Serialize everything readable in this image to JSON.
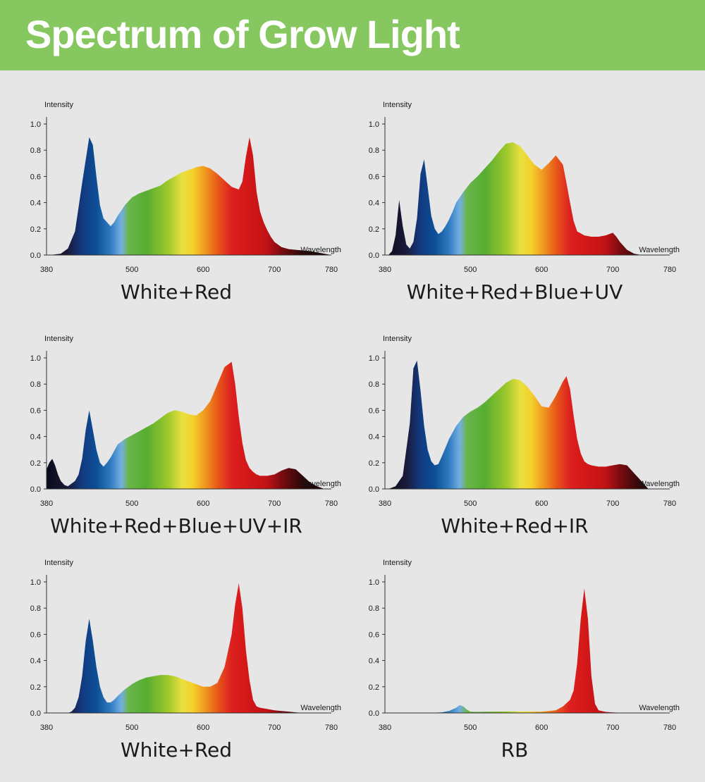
{
  "page": {
    "title": "Spectrum of Grow Light"
  },
  "colors": {
    "banner": "#86c760",
    "background": "#e6e6e6",
    "text": "#1a1a1a"
  },
  "chart_data": [
    {
      "type": "area",
      "caption": "White+Red",
      "ylabel": "Intensity",
      "xlabel": "Wavelength",
      "ylim": [
        0,
        1.0
      ],
      "xlim": [
        380,
        780
      ],
      "x_ticks": [
        380,
        500,
        600,
        700,
        780
      ],
      "y_ticks": [
        "0.0",
        "0.2",
        "0.4",
        "0.6",
        "0.8",
        "1.0"
      ],
      "x": [
        385,
        400,
        410,
        420,
        430,
        440,
        445,
        450,
        455,
        460,
        465,
        470,
        475,
        480,
        485,
        490,
        500,
        510,
        520,
        530,
        540,
        550,
        560,
        570,
        580,
        590,
        600,
        610,
        620,
        630,
        640,
        650,
        655,
        660,
        665,
        670,
        675,
        680,
        685,
        690,
        695,
        700,
        710,
        720,
        730,
        740,
        750,
        760,
        770,
        780
      ],
      "values": [
        0,
        0.01,
        0.05,
        0.18,
        0.55,
        0.9,
        0.84,
        0.6,
        0.38,
        0.28,
        0.25,
        0.22,
        0.25,
        0.3,
        0.34,
        0.38,
        0.44,
        0.47,
        0.49,
        0.51,
        0.53,
        0.57,
        0.6,
        0.63,
        0.65,
        0.67,
        0.68,
        0.66,
        0.62,
        0.57,
        0.52,
        0.5,
        0.56,
        0.75,
        0.9,
        0.76,
        0.48,
        0.33,
        0.25,
        0.19,
        0.14,
        0.1,
        0.06,
        0.045,
        0.04,
        0.035,
        0.03,
        0.02,
        0.01,
        0
      ]
    },
    {
      "type": "area",
      "caption": "White+Red+Blue+UV",
      "ylabel": "Intensity",
      "xlabel": "Wavelength",
      "ylim": [
        0,
        1.0
      ],
      "xlim": [
        380,
        780
      ],
      "x_ticks": [
        380,
        500,
        600,
        700,
        780
      ],
      "y_ticks": [
        "0.0",
        "0.2",
        "0.4",
        "0.6",
        "0.8",
        "1.0"
      ],
      "x": [
        385,
        390,
        395,
        400,
        405,
        410,
        415,
        420,
        425,
        430,
        435,
        440,
        445,
        450,
        455,
        460,
        465,
        470,
        475,
        480,
        490,
        500,
        510,
        520,
        530,
        540,
        550,
        560,
        570,
        580,
        590,
        600,
        610,
        620,
        630,
        635,
        640,
        645,
        650,
        660,
        670,
        680,
        690,
        700,
        705,
        710,
        720,
        730,
        740
      ],
      "values": [
        0,
        0.03,
        0.15,
        0.42,
        0.22,
        0.08,
        0.05,
        0.1,
        0.28,
        0.62,
        0.73,
        0.52,
        0.3,
        0.2,
        0.16,
        0.18,
        0.22,
        0.27,
        0.33,
        0.4,
        0.48,
        0.55,
        0.6,
        0.66,
        0.72,
        0.79,
        0.85,
        0.86,
        0.83,
        0.76,
        0.69,
        0.65,
        0.7,
        0.76,
        0.69,
        0.55,
        0.4,
        0.26,
        0.18,
        0.15,
        0.14,
        0.14,
        0.15,
        0.17,
        0.14,
        0.1,
        0.04,
        0.01,
        0
      ]
    },
    {
      "type": "area",
      "caption": "White+Red+Blue+UV+IR",
      "ylabel": "Intensity",
      "xlabel": "Wavelength",
      "ylim": [
        0,
        1.0
      ],
      "xlim": [
        380,
        780
      ],
      "x_ticks": [
        380,
        500,
        600,
        700,
        780
      ],
      "y_ticks": [
        "0.0",
        "0.2",
        "0.4",
        "0.6",
        "0.8",
        "1.0"
      ],
      "x": [
        380,
        384,
        388,
        392,
        396,
        400,
        405,
        410,
        420,
        425,
        430,
        435,
        440,
        445,
        450,
        455,
        460,
        465,
        470,
        475,
        480,
        490,
        500,
        510,
        520,
        530,
        540,
        550,
        560,
        570,
        580,
        590,
        600,
        610,
        620,
        630,
        640,
        645,
        650,
        655,
        660,
        665,
        670,
        675,
        680,
        690,
        700,
        710,
        720,
        730,
        740,
        750,
        760,
        770
      ],
      "values": [
        0.15,
        0.2,
        0.23,
        0.18,
        0.11,
        0.06,
        0.03,
        0.02,
        0.06,
        0.11,
        0.23,
        0.45,
        0.6,
        0.45,
        0.3,
        0.2,
        0.17,
        0.2,
        0.24,
        0.29,
        0.34,
        0.38,
        0.41,
        0.44,
        0.47,
        0.5,
        0.54,
        0.58,
        0.6,
        0.59,
        0.57,
        0.56,
        0.6,
        0.67,
        0.8,
        0.93,
        0.97,
        0.8,
        0.55,
        0.35,
        0.22,
        0.16,
        0.13,
        0.11,
        0.1,
        0.1,
        0.11,
        0.14,
        0.16,
        0.15,
        0.1,
        0.05,
        0.02,
        0
      ]
    },
    {
      "type": "area",
      "caption": "White+Red+IR",
      "ylabel": "Intensity",
      "xlabel": "Wavelength",
      "ylim": [
        0,
        1.0
      ],
      "xlim": [
        380,
        780
      ],
      "x_ticks": [
        380,
        500,
        600,
        700,
        780
      ],
      "y_ticks": [
        "0.0",
        "0.2",
        "0.4",
        "0.6",
        "0.8",
        "1.0"
      ],
      "x": [
        385,
        395,
        405,
        415,
        420,
        425,
        430,
        435,
        440,
        445,
        450,
        455,
        460,
        470,
        480,
        490,
        500,
        510,
        520,
        530,
        540,
        550,
        560,
        570,
        580,
        590,
        600,
        610,
        620,
        630,
        635,
        640,
        645,
        650,
        655,
        660,
        665,
        670,
        680,
        690,
        700,
        710,
        720,
        730,
        740,
        750
      ],
      "values": [
        0,
        0.02,
        0.1,
        0.5,
        0.92,
        0.98,
        0.75,
        0.48,
        0.3,
        0.21,
        0.18,
        0.19,
        0.25,
        0.38,
        0.48,
        0.55,
        0.59,
        0.62,
        0.66,
        0.71,
        0.76,
        0.81,
        0.84,
        0.83,
        0.78,
        0.71,
        0.63,
        0.62,
        0.71,
        0.82,
        0.86,
        0.76,
        0.56,
        0.38,
        0.27,
        0.21,
        0.19,
        0.18,
        0.17,
        0.17,
        0.18,
        0.19,
        0.18,
        0.12,
        0.06,
        0
      ]
    },
    {
      "type": "area",
      "caption": "White+Red",
      "ylabel": "Intensity",
      "xlabel": "Wavelength",
      "ylim": [
        0,
        1.0
      ],
      "xlim": [
        380,
        780
      ],
      "x_ticks": [
        380,
        500,
        600,
        700,
        780
      ],
      "y_ticks": [
        "0.0",
        "0.2",
        "0.4",
        "0.6",
        "0.8",
        "1.0"
      ],
      "x": [
        410,
        415,
        420,
        425,
        430,
        435,
        440,
        445,
        450,
        455,
        460,
        465,
        470,
        475,
        480,
        490,
        500,
        510,
        520,
        530,
        540,
        550,
        560,
        570,
        580,
        590,
        600,
        610,
        620,
        630,
        640,
        645,
        650,
        655,
        660,
        665,
        670,
        675,
        680,
        690,
        700,
        710,
        720,
        730,
        740
      ],
      "values": [
        0,
        0.01,
        0.04,
        0.12,
        0.28,
        0.55,
        0.72,
        0.55,
        0.35,
        0.2,
        0.12,
        0.08,
        0.08,
        0.1,
        0.13,
        0.18,
        0.22,
        0.25,
        0.27,
        0.28,
        0.29,
        0.29,
        0.28,
        0.26,
        0.24,
        0.22,
        0.2,
        0.2,
        0.23,
        0.35,
        0.6,
        0.83,
        0.99,
        0.8,
        0.48,
        0.25,
        0.1,
        0.05,
        0.04,
        0.03,
        0.02,
        0.015,
        0.01,
        0.005,
        0
      ]
    },
    {
      "type": "area",
      "caption": "RB",
      "ylabel": "Intensity",
      "xlabel": "Wavelength",
      "ylim": [
        0,
        1.0
      ],
      "xlim": [
        380,
        780
      ],
      "x_ticks": [
        380,
        500,
        600,
        700,
        780
      ],
      "y_ticks": [
        "0.0",
        "0.2",
        "0.4",
        "0.6",
        "0.8",
        "1.0"
      ],
      "x": [
        440,
        460,
        470,
        480,
        485,
        490,
        495,
        500,
        510,
        530,
        560,
        600,
        620,
        630,
        640,
        645,
        650,
        655,
        660,
        665,
        670,
        675,
        680,
        690,
        700,
        720
      ],
      "values": [
        0,
        0.005,
        0.015,
        0.04,
        0.06,
        0.05,
        0.025,
        0.01,
        0.008,
        0.01,
        0.012,
        0.01,
        0.02,
        0.05,
        0.1,
        0.17,
        0.38,
        0.72,
        0.95,
        0.72,
        0.28,
        0.07,
        0.02,
        0.008,
        0.004,
        0
      ]
    }
  ]
}
